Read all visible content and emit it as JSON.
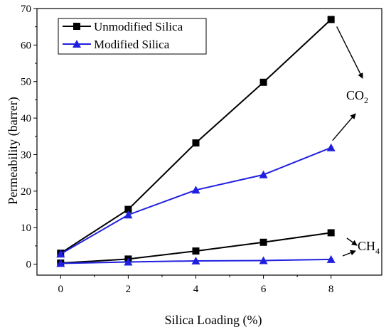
{
  "chart_data": {
    "type": "line",
    "xlabel": "Silica Loading (%)",
    "ylabel": "Permeability (barrer)",
    "xlim": [
      -0.7,
      9.5
    ],
    "ylim": [
      -3,
      70
    ],
    "xticks": [
      0,
      2,
      4,
      6,
      8
    ],
    "yticks": [
      0,
      10,
      20,
      30,
      40,
      50,
      60,
      70
    ],
    "grid": false,
    "legend_position": "top-left",
    "x": [
      0,
      2,
      4,
      6,
      8
    ],
    "series": [
      {
        "name": "Unmodified Silica",
        "gas": "CO2",
        "marker": "square",
        "color": "#000000",
        "values": [
          3.0,
          15.0,
          33.2,
          49.8,
          67.0
        ]
      },
      {
        "name": "Modified Silica",
        "gas": "CO2",
        "marker": "triangle",
        "color": "#1f1fe0",
        "values": [
          2.8,
          13.5,
          20.3,
          24.5,
          31.9
        ]
      },
      {
        "name": "Unmodified Silica",
        "gas": "CH4",
        "marker": "square",
        "color": "#000000",
        "values": [
          0.3,
          1.4,
          3.6,
          6.0,
          8.6
        ]
      },
      {
        "name": "Modified Silica",
        "gas": "CH4",
        "marker": "triangle",
        "color": "#1f1fe0",
        "values": [
          0.2,
          0.6,
          0.9,
          1.0,
          1.3
        ]
      }
    ],
    "annotations": [
      {
        "main": "CO",
        "sub": "2"
      },
      {
        "main": "CH",
        "sub": "4"
      }
    ]
  }
}
